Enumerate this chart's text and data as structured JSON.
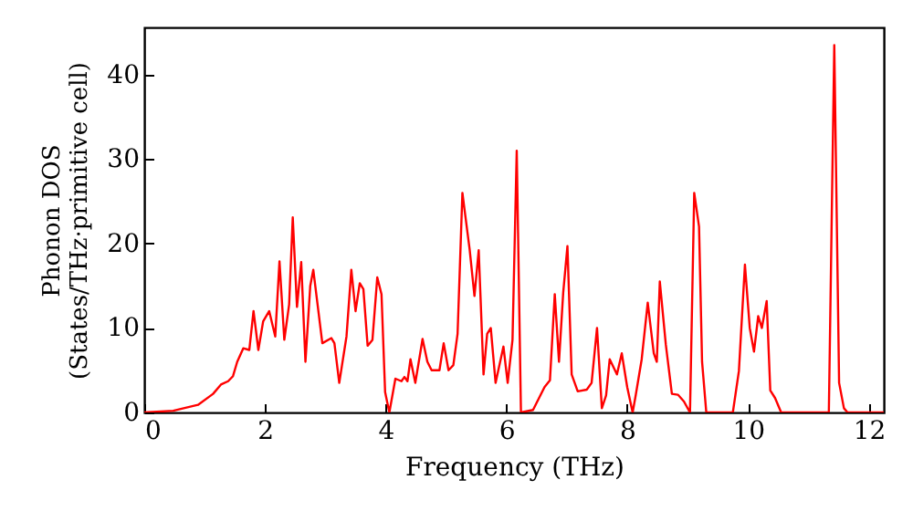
{
  "chart_data": {
    "type": "line",
    "xlabel": "Frequency (THz)",
    "ylabel": "Phonon DOS\n(States/THz·primitive cell)",
    "xlim": [
      0,
      12.25
    ],
    "ylim": [
      0,
      45.6
    ],
    "xticks": [
      0,
      2,
      4,
      6,
      8,
      10,
      12
    ],
    "yticks": [
      0,
      10,
      20,
      30,
      40
    ],
    "grid": false,
    "marker": "none",
    "line_style": "solid",
    "series": [
      {
        "color": "#ff0000",
        "x": [
          0,
          0.48,
          0.89,
          1.14,
          1.27,
          1.39,
          1.47,
          1.54,
          1.64,
          1.74,
          1.81,
          1.89,
          1.97,
          2.07,
          2.17,
          2.24,
          2.32,
          2.4,
          2.46,
          2.53,
          2.6,
          2.67,
          2.75,
          2.8,
          2.95,
          3.1,
          3.15,
          3.23,
          3.35,
          3.43,
          3.5,
          3.57,
          3.63,
          3.7,
          3.78,
          3.86,
          3.93,
          3.99,
          4.06,
          4.16,
          4.26,
          4.31,
          4.36,
          4.41,
          4.49,
          4.61,
          4.69,
          4.76,
          4.89,
          4.96,
          5.04,
          5.12,
          5.19,
          5.27,
          5.39,
          5.47,
          5.54,
          5.62,
          5.68,
          5.74,
          5.82,
          5.95,
          6.02,
          6.1,
          6.17,
          6.24,
          6.44,
          6.63,
          6.72,
          6.8,
          6.87,
          6.94,
          7.01,
          7.08,
          7.18,
          7.33,
          7.41,
          7.5,
          7.58,
          7.65,
          7.71,
          7.83,
          7.91,
          8.0,
          8.09,
          8.14,
          8.24,
          8.34,
          8.44,
          8.49,
          8.54,
          8.64,
          8.74,
          8.84,
          8.94,
          9.04,
          9.11,
          9.19,
          9.24,
          9.31,
          9.75,
          9.85,
          9.95,
          10.03,
          10.1,
          10.17,
          10.23,
          10.31,
          10.37,
          10.45,
          10.55,
          11.34,
          11.43,
          11.51,
          11.59,
          11.65,
          12.25
        ],
        "values": [
          0,
          0.2,
          0.9,
          2.2,
          3.3,
          3.7,
          4.3,
          6,
          7.6,
          7.4,
          12,
          7.4,
          10.8,
          12,
          9,
          17.9,
          8.6,
          12.8,
          23.1,
          12.5,
          17.8,
          6,
          15,
          16.9,
          8.2,
          8.8,
          8.2,
          3.5,
          9,
          16.9,
          12,
          15.3,
          14.6,
          7.9,
          8.6,
          16,
          14,
          2.4,
          0,
          4,
          3.7,
          4.2,
          3.7,
          6.3,
          3.5,
          8.7,
          6,
          5,
          5,
          8.2,
          5,
          5.6,
          9.3,
          26,
          19.3,
          13.8,
          19.2,
          4.5,
          9.3,
          10,
          3.5,
          7.8,
          3.5,
          8.6,
          31,
          0,
          0.3,
          3,
          3.8,
          14,
          6,
          14.2,
          19.7,
          4.5,
          2.5,
          2.7,
          3.5,
          10,
          0.5,
          2,
          6.3,
          4.5,
          7,
          3,
          0,
          2,
          6.3,
          13,
          7,
          6,
          15.5,
          8,
          2.2,
          2.1,
          1.3,
          0,
          26,
          22,
          6,
          0,
          0,
          4.9,
          17.5,
          10,
          7.2,
          11.4,
          10,
          13.2,
          2.6,
          1.7,
          0,
          0,
          43.5,
          3.5,
          0.5,
          0,
          0
        ]
      }
    ]
  }
}
